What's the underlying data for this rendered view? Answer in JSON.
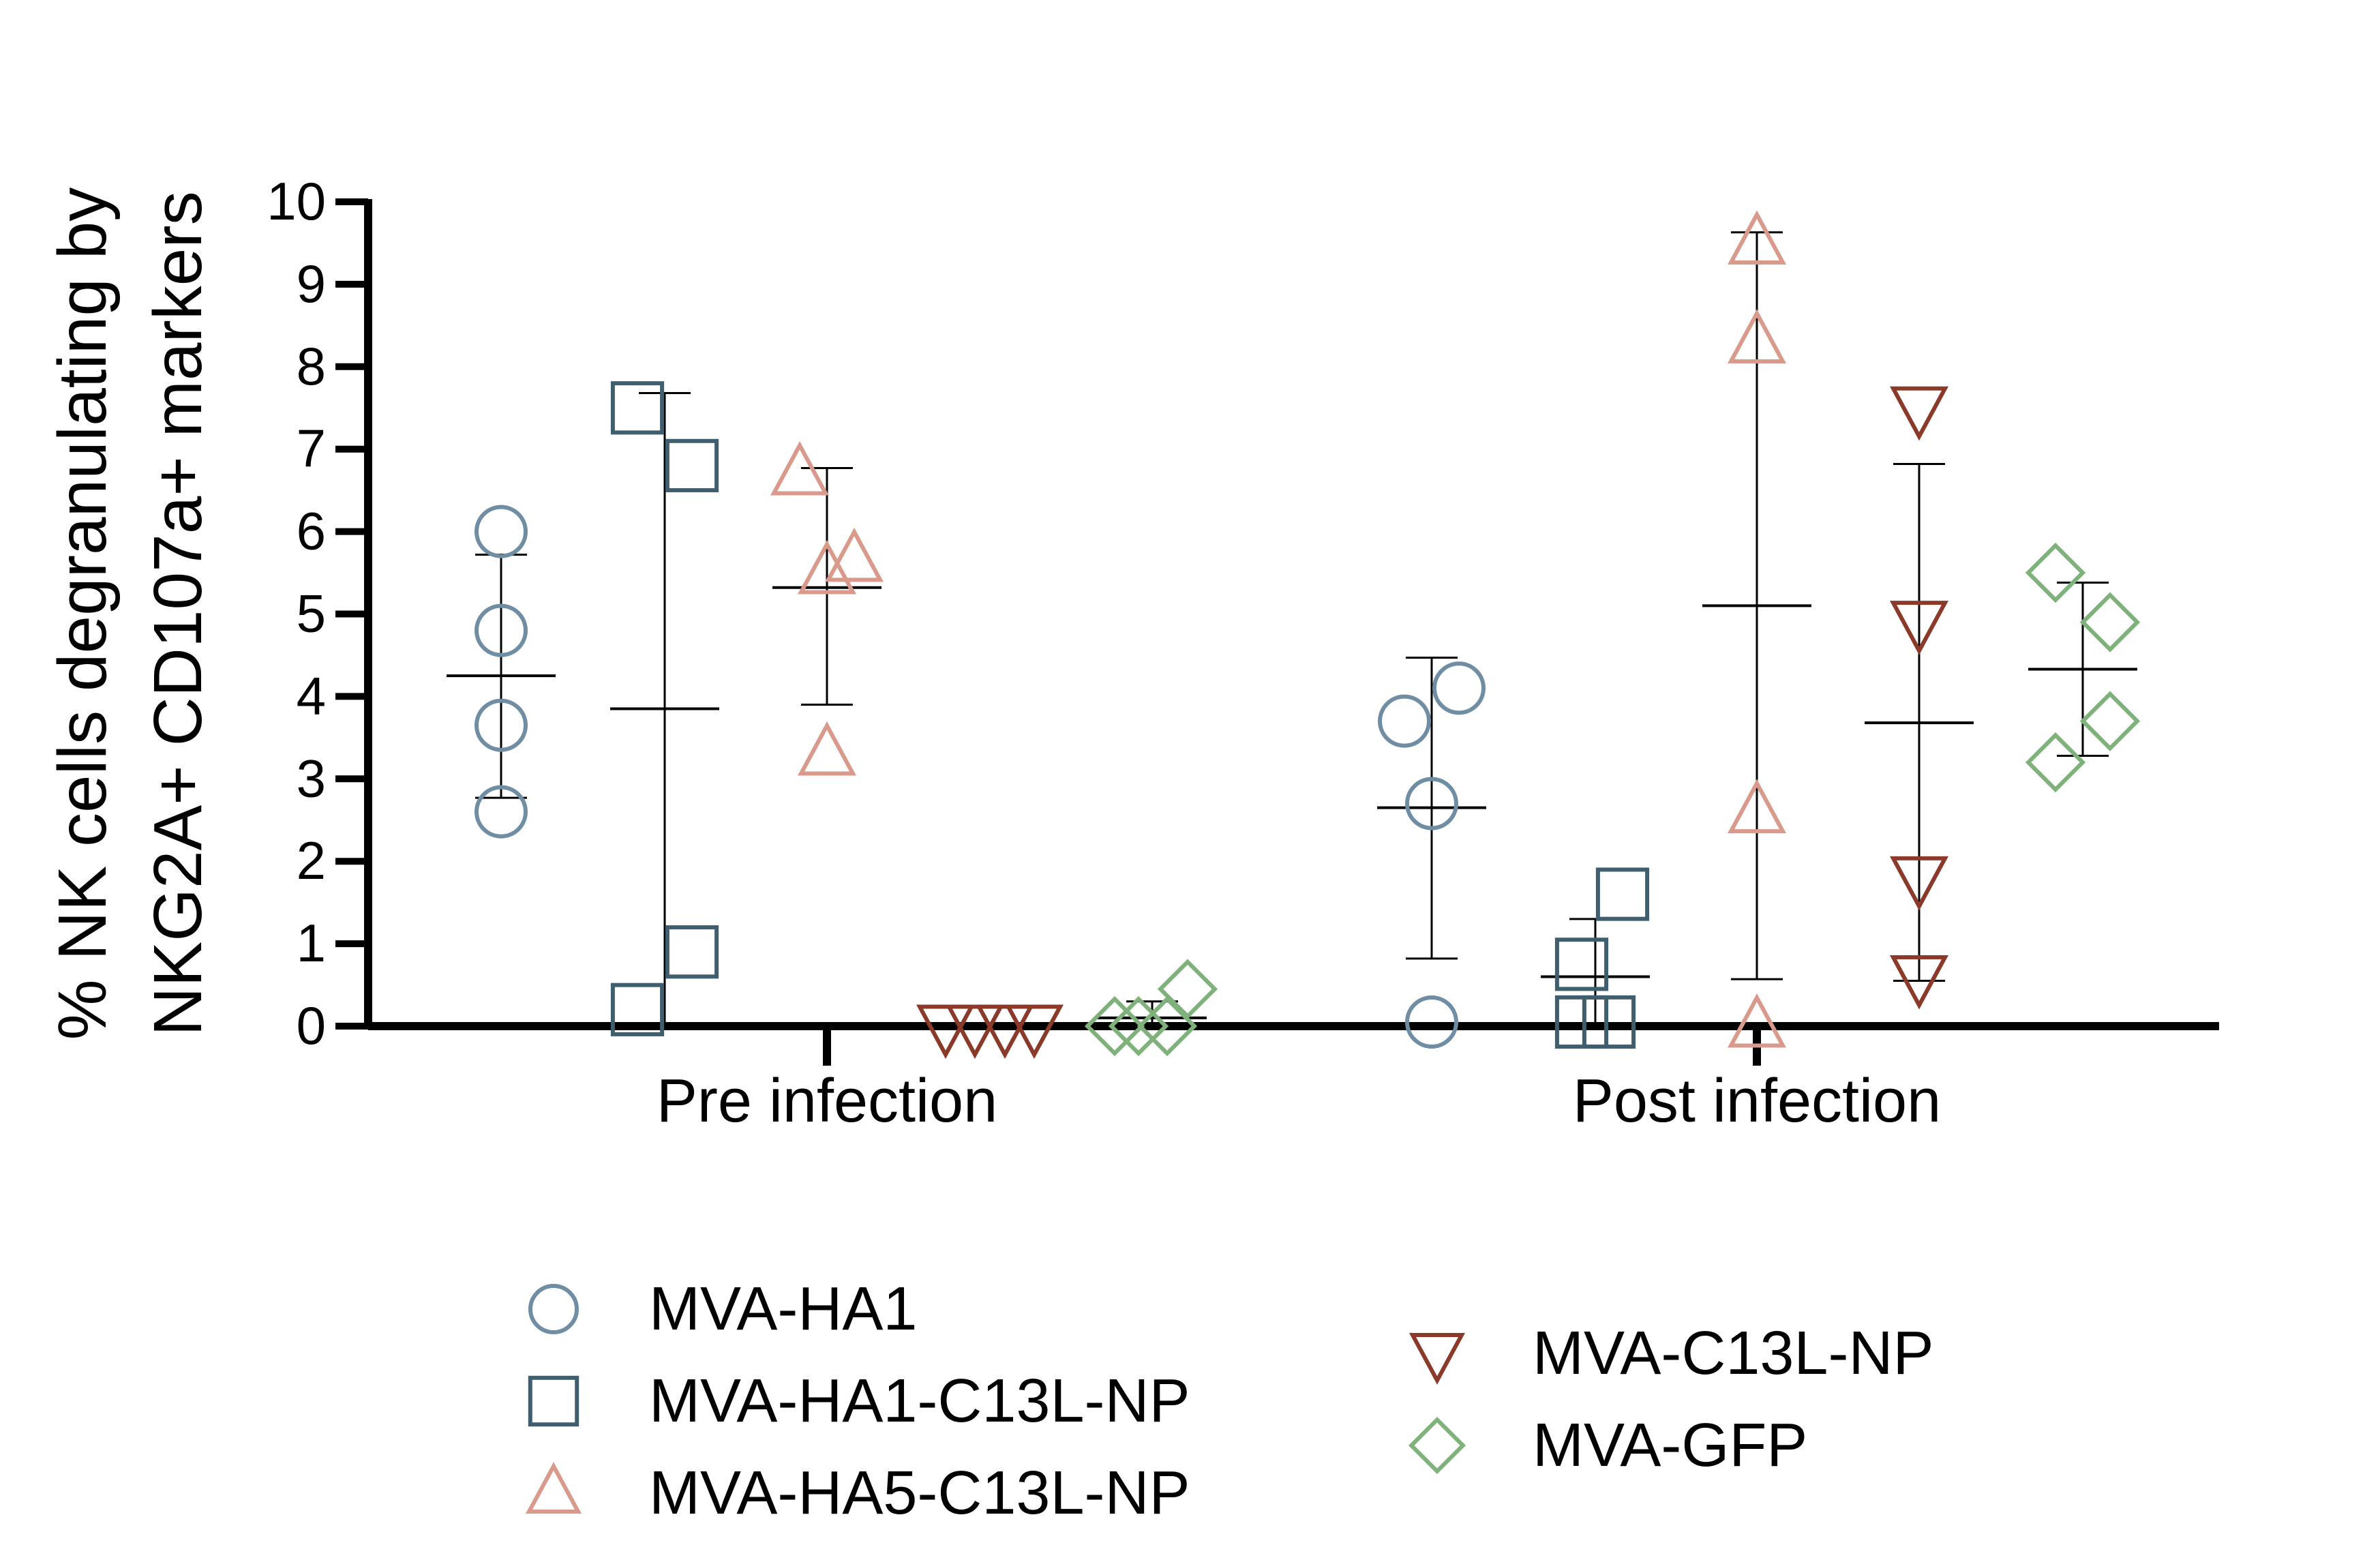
{
  "chart_data": {
    "type": "scatter",
    "title": "",
    "ylabel_lines": [
      "% NK cells degranulating by",
      "NKG2A+ CD107a+ markers"
    ],
    "xlabel": "",
    "ylim": [
      0,
      10
    ],
    "yticks": [
      "0",
      "1",
      "2",
      "3",
      "4",
      "5",
      "6",
      "7",
      "8",
      "9",
      "10"
    ],
    "categories": [
      "Pre infection",
      "Post infection"
    ],
    "legend_position": "bottom",
    "series": [
      {
        "name": "MVA-HA1",
        "marker": "circle",
        "color": "#6f8ea3",
        "pre": {
          "points": [
            6.0,
            4.8,
            3.65,
            2.6
          ],
          "mean": 4.25,
          "sd_low": 2.77,
          "sd_high": 5.72
        },
        "post": {
          "points": [
            3.7,
            4.1,
            2.7,
            0.05
          ],
          "mean": 2.65,
          "sd_low": 0.82,
          "sd_high": 4.47
        }
      },
      {
        "name": "MVA-HA1-C13L-NP",
        "marker": "square",
        "color": "#3f5e6e",
        "pre": {
          "points": [
            7.5,
            6.8,
            0.9,
            0.2
          ],
          "mean": 3.85,
          "sd_low": -0.2,
          "sd_high": 7.68
        },
        "post": {
          "points": [
            1.6,
            0.75,
            0.05,
            0.05
          ],
          "mean": 0.6,
          "sd_low": 0.0,
          "sd_high": 1.3
        }
      },
      {
        "name": "MVA-HA5-C13L-NP",
        "marker": "triangle-up",
        "color": "#d99a8c",
        "pre": {
          "points": [
            6.7,
            5.65,
            5.5,
            3.3
          ],
          "mean": 5.32,
          "sd_low": 3.9,
          "sd_high": 6.77
        },
        "post": {
          "points": [
            9.5,
            8.3,
            2.6,
            0.0
          ],
          "mean": 5.1,
          "sd_low": 0.57,
          "sd_high": 9.63
        }
      },
      {
        "name": "MVA-C13L-NP",
        "marker": "triangle-down",
        "color": "#8b3a2a",
        "pre": {
          "points": [
            0.0,
            0.0,
            0.0,
            0.0
          ],
          "mean": 0.0,
          "sd_low": 0.0,
          "sd_high": 0.0
        },
        "post": {
          "points": [
            7.5,
            4.9,
            1.8,
            0.6
          ],
          "mean": 3.68,
          "sd_low": 0.55,
          "sd_high": 6.82
        }
      },
      {
        "name": "MVA-GFP",
        "marker": "diamond",
        "color": "#7fb27a",
        "pre": {
          "points": [
            0.45,
            0.0,
            0.0,
            0.0
          ],
          "mean": 0.1,
          "sd_low": 0.0,
          "sd_high": 0.3
        },
        "post": {
          "points": [
            5.5,
            4.9,
            3.7,
            3.2
          ],
          "mean": 4.33,
          "sd_low": 3.28,
          "sd_high": 5.38
        }
      }
    ]
  }
}
